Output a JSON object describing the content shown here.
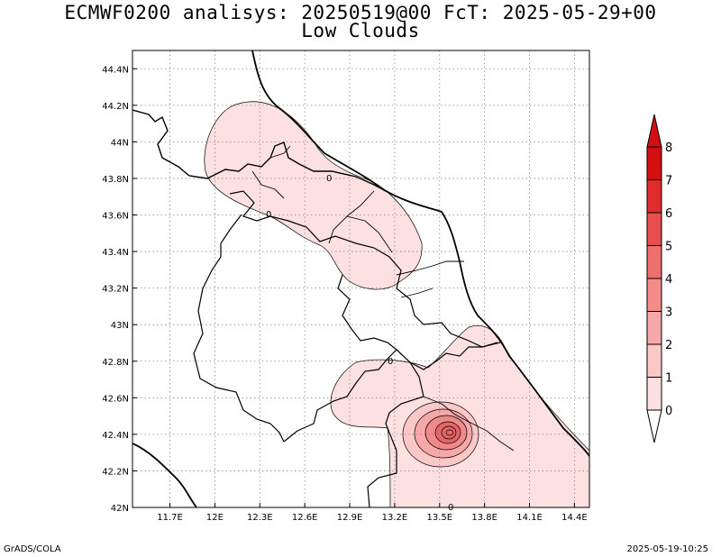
{
  "title_line1": "ECMWF0200 analisys: 20250519@00 FcT: 2025-05-29+00",
  "title_line2": "Low Clouds",
  "footer_left": "GrADS/COLA",
  "footer_right": "2025-05-19-10:25",
  "map": {
    "lon_range": [
      11.45,
      14.5
    ],
    "lat_range": [
      42.0,
      44.5
    ],
    "grid": true,
    "lon_ticks": [
      "11.7E",
      "12E",
      "12.3E",
      "12.6E",
      "12.9E",
      "13.2E",
      "13.5E",
      "13.8E",
      "14.1E",
      "14.4E"
    ],
    "lon_values": [
      11.7,
      12.0,
      12.3,
      12.6,
      12.9,
      13.2,
      13.5,
      13.8,
      14.1,
      14.4
    ],
    "lat_ticks": [
      "42N",
      "42.2N",
      "42.4N",
      "42.6N",
      "42.8N",
      "43N",
      "43.2N",
      "43.4N",
      "43.6N",
      "43.8N",
      "44N",
      "44.2N",
      "44.4N"
    ],
    "lat_values": [
      42.0,
      42.2,
      42.4,
      42.6,
      42.8,
      43.0,
      43.2,
      43.4,
      43.6,
      43.8,
      44.0,
      44.2,
      44.4
    ],
    "contour_labels": [
      "0",
      "0",
      "0",
      "0"
    ],
    "fill_color": "#fde1e1",
    "peak_colors": [
      "#fbc7c7",
      "#f7a9a9",
      "#f08989",
      "#e86565"
    ]
  },
  "colorbar": {
    "labels": [
      "0",
      "1",
      "2",
      "3",
      "4",
      "5",
      "6",
      "7",
      "8"
    ],
    "colors": [
      "#ffffff",
      "#fde1e1",
      "#fbc7c7",
      "#f7a9a9",
      "#f48c8c",
      "#ef6e6e",
      "#e84e4e",
      "#e02c2c",
      "#d40f0f"
    ]
  }
}
